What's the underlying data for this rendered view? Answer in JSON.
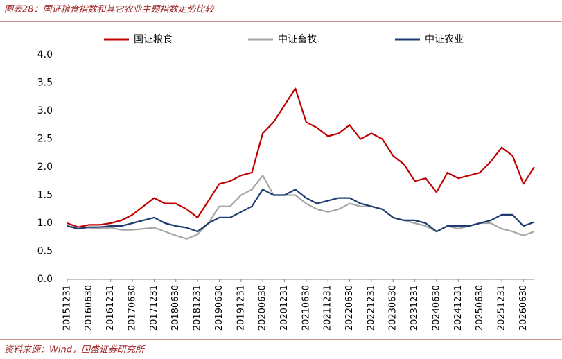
{
  "chart_data": {
    "type": "line",
    "title": "图表28：国证粮食指数和其它农业主题指数走势比较",
    "source": "资料来源：Wind，国盛证券研究所",
    "categories": [
      "20151231",
      null,
      "20160630",
      null,
      "20161231",
      null,
      "20170630",
      null,
      "20171231",
      null,
      "20180630",
      null,
      "20181231",
      null,
      "20190630",
      null,
      "20191231",
      null,
      "20200630",
      null,
      "20201231",
      null,
      "20210630",
      null,
      "20211231",
      null,
      "20220630",
      null,
      "20221231",
      null,
      "20230630",
      null,
      "20231231",
      null,
      "20240630",
      null,
      "20241231",
      null,
      "20250630",
      null,
      "20251231",
      null,
      "20260630",
      null
    ],
    "series": [
      {
        "name": "国证粮食",
        "color": "#c00000",
        "values": [
          1.0,
          0.93,
          0.97,
          0.97,
          1.0,
          1.05,
          1.15,
          1.3,
          1.45,
          1.35,
          1.35,
          1.25,
          1.1,
          1.4,
          1.7,
          1.75,
          1.85,
          1.9,
          2.6,
          2.8,
          3.1,
          3.4,
          2.8,
          2.7,
          2.55,
          2.6,
          2.75,
          2.5,
          2.6,
          2.5,
          2.2,
          2.05,
          1.75,
          1.8,
          1.55,
          1.9,
          1.8,
          1.85,
          1.9,
          2.1,
          2.35,
          2.2,
          1.7,
          2.0
        ]
      },
      {
        "name": "中证畜牧",
        "color": "#a6a6a6",
        "values": [
          0.95,
          0.92,
          0.92,
          0.9,
          0.92,
          0.88,
          0.88,
          0.9,
          0.92,
          0.85,
          0.78,
          0.72,
          0.8,
          1.0,
          1.3,
          1.3,
          1.5,
          1.6,
          1.85,
          1.5,
          1.5,
          1.5,
          1.35,
          1.25,
          1.2,
          1.25,
          1.35,
          1.3,
          1.3,
          1.25,
          1.1,
          1.05,
          1.0,
          0.95,
          0.85,
          0.95,
          0.9,
          0.95,
          1.0,
          1.0,
          0.9,
          0.85,
          0.78,
          0.85
        ]
      },
      {
        "name": "中证农业",
        "color": "#1f3c70",
        "values": [
          0.95,
          0.9,
          0.93,
          0.93,
          0.95,
          0.95,
          1.0,
          1.05,
          1.1,
          1.0,
          0.95,
          0.92,
          0.85,
          1.0,
          1.1,
          1.1,
          1.2,
          1.3,
          1.6,
          1.5,
          1.5,
          1.6,
          1.45,
          1.35,
          1.4,
          1.45,
          1.45,
          1.35,
          1.3,
          1.25,
          1.1,
          1.05,
          1.05,
          1.0,
          0.85,
          0.95,
          0.95,
          0.95,
          1.0,
          1.05,
          1.15,
          1.15,
          0.95,
          1.02
        ]
      }
    ],
    "ylim": [
      0,
      4
    ],
    "yticks": [
      {
        "value": 0,
        "label": "0.0"
      },
      {
        "value": 0.5,
        "label": "0.5"
      },
      {
        "value": 1,
        "label": "1.0"
      },
      {
        "value": 1.5,
        "label": "1.5"
      },
      {
        "value": 2,
        "label": "2.0"
      },
      {
        "value": 2.5,
        "label": "2.5"
      },
      {
        "value": 3,
        "label": "3.0"
      },
      {
        "value": 3.5,
        "label": "3.5"
      },
      {
        "value": 4,
        "label": "4.0"
      }
    ],
    "grid": false,
    "legend": "top"
  }
}
